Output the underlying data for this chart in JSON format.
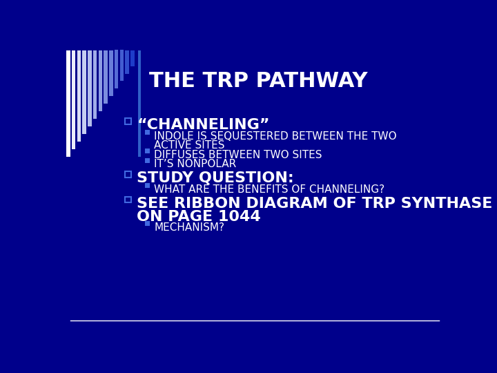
{
  "title": "THE TRP PATHWAY",
  "background_color": "#00008B",
  "title_color": "#FFFFFF",
  "title_fontsize": 22,
  "bullet_color": "#FFFFFF",
  "sub_bullet_color": "#FFFFFF",
  "bullet_square_color": "#4169E1",
  "sub_bullet_square_color": "#4169E1",
  "bottom_line_color": "#FFFFFF",
  "bullet_fontsize": 16,
  "sub_fontsize": 11,
  "stripe_colors": [
    "#FFFAF0",
    "#F5F5DC",
    "#E8E8D0",
    "#C8C8A0",
    "#A0A8C0",
    "#7890D0",
    "#6080D8",
    "#4870D0",
    "#3060C8",
    "#2050C0"
  ],
  "content": [
    {
      "text": "“CHANNELING”",
      "subitems": [
        [
          "INDOLE IS SEQUESTERED BETWEEN THE TWO",
          "ACTIVE SITES"
        ],
        [
          "DIFFUSES BETWEEN TWO SITES"
        ],
        [
          "IT’S NONPOLAR"
        ]
      ]
    },
    {
      "text": "STUDY QUESTION:",
      "subitems": [
        [
          "WHAT ARE THE BENEFITS OF CHANNELING?"
        ]
      ]
    },
    {
      "text": "SEE RIBBON DIAGRAM OF TRP SYNTHASE",
      "text2": "ON PAGE 1044",
      "subitems": [
        [
          "MECHANISM?"
        ]
      ]
    }
  ]
}
